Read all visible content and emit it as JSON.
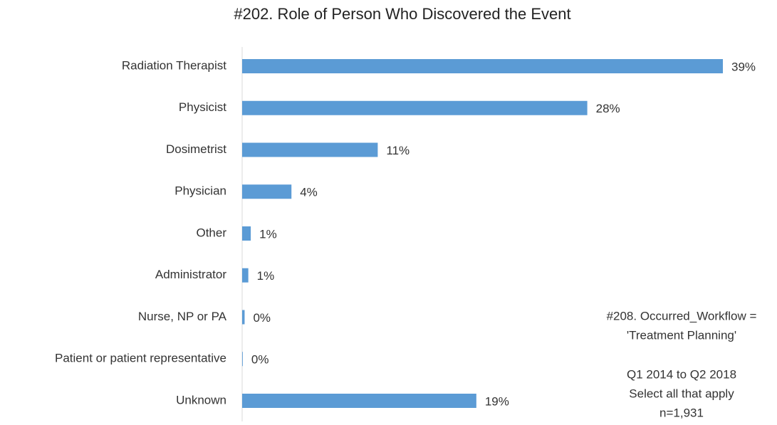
{
  "chart_data": {
    "type": "bar",
    "orientation": "horizontal",
    "title": "#202. Role of Person Who Discovered the Event",
    "categories": [
      "Radiation Therapist",
      "Physicist",
      "Dosimetrist",
      "Physician",
      "Other",
      "Administrator",
      "Nurse, NP or PA",
      "Patient or patient representative",
      "Unknown"
    ],
    "values": [
      39,
      28,
      11,
      4,
      0.7,
      0.5,
      0.2,
      0.05,
      19
    ],
    "value_labels": [
      "39%",
      "28%",
      "11%",
      "4%",
      "1%",
      "1%",
      "0%",
      "0%",
      "19%"
    ],
    "color": "#5b9bd5",
    "annotations": [
      "#208. Occurred_Workflow =",
      "'Treatment Planning'",
      "Q1 2014 to Q2 2018",
      "Select all that apply",
      "n=1,931"
    ]
  }
}
